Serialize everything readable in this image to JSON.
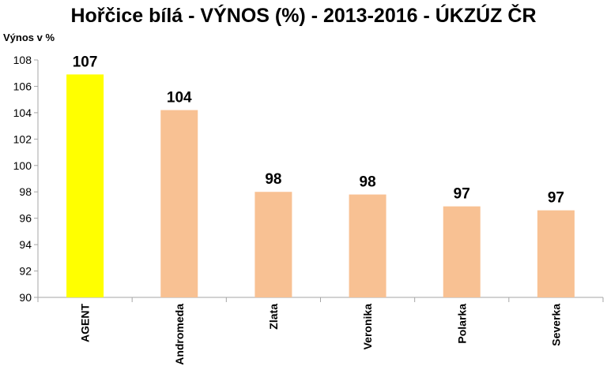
{
  "chart_data": {
    "type": "bar",
    "title": "Hořčice bílá - VÝNOS (%) - 2013-2016 - ÚKZÚZ ČR",
    "xlabel": "",
    "ylabel": "Výnos v %",
    "categories": [
      "AGENT",
      "Andromeda",
      "Zlata",
      "Veronika",
      "Polarka",
      "Severka"
    ],
    "values": [
      106.9,
      104.2,
      98.0,
      97.8,
      96.9,
      96.6
    ],
    "data_labels": [
      "107",
      "104",
      "98",
      "98",
      "97",
      "97"
    ],
    "ylim": [
      90,
      108
    ],
    "yticks": [
      90,
      92,
      94,
      96,
      98,
      100,
      102,
      104,
      106,
      108
    ],
    "grid": false,
    "legend": "none",
    "colors": {
      "highlight": "#ffff00",
      "default": "#f8c193",
      "axis": "#a6a6a6"
    }
  }
}
